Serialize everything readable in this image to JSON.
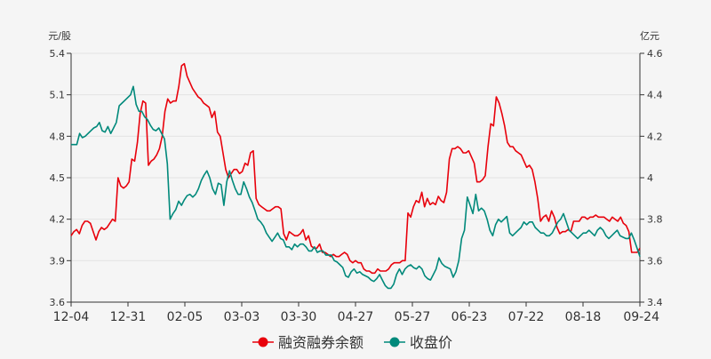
{
  "chart_data": {
    "type": "line",
    "left_unit": "元/股",
    "right_unit": "亿元",
    "x_ticks": [
      "12-04",
      "12-31",
      "02-05",
      "03-03",
      "03-30",
      "04-27",
      "05-27",
      "06-23",
      "07-22",
      "08-18",
      "09-24"
    ],
    "left_axis": {
      "min": 3.6,
      "max": 5.4,
      "ticks": [
        "3.6",
        "3.9",
        "4.2",
        "4.5",
        "4.8",
        "5.1",
        "5.4"
      ]
    },
    "right_axis": {
      "min": 3.4,
      "max": 4.6,
      "ticks": [
        "3.4",
        "3.6",
        "3.8",
        "4",
        "4.2",
        "4.4",
        "4.6"
      ]
    },
    "legend_position": "bottom-center",
    "colors": {
      "margin_balance": "#e8000b",
      "close_price": "#00897b",
      "axis": "#333333"
    },
    "series": [
      {
        "name": "融资融券余额",
        "axis": "right",
        "color": "#e8000b",
        "values": [
          3.72,
          3.74,
          3.75,
          3.73,
          3.77,
          3.79,
          3.79,
          3.78,
          3.74,
          3.7,
          3.74,
          3.76,
          3.75,
          3.76,
          3.78,
          3.8,
          3.79,
          4.0,
          3.96,
          3.95,
          3.96,
          3.98,
          4.09,
          4.08,
          4.17,
          4.31,
          4.37,
          4.36,
          4.06,
          4.08,
          4.09,
          4.11,
          4.14,
          4.2,
          4.32,
          4.38,
          4.36,
          4.37,
          4.37,
          4.44,
          4.54,
          4.55,
          4.49,
          4.46,
          4.43,
          4.41,
          4.39,
          4.38,
          4.36,
          4.35,
          4.34,
          4.29,
          4.32,
          4.22,
          4.2,
          4.12,
          4.04,
          4.0,
          4.02,
          4.04,
          4.04,
          4.02,
          4.03,
          4.07,
          4.06,
          4.12,
          4.13,
          3.9,
          3.87,
          3.86,
          3.85,
          3.84,
          3.84,
          3.85,
          3.86,
          3.86,
          3.85,
          3.73,
          3.7,
          3.74,
          3.73,
          3.72,
          3.72,
          3.73,
          3.75,
          3.7,
          3.72,
          3.67,
          3.66,
          3.66,
          3.68,
          3.64,
          3.64,
          3.63,
          3.62,
          3.63,
          3.62,
          3.62,
          3.63,
          3.64,
          3.63,
          3.6,
          3.59,
          3.6,
          3.59,
          3.59,
          3.56,
          3.55,
          3.55,
          3.54,
          3.54,
          3.56,
          3.55,
          3.55,
          3.55,
          3.56,
          3.58,
          3.59,
          3.59,
          3.59,
          3.6,
          3.6,
          3.83,
          3.81,
          3.86,
          3.89,
          3.88,
          3.93,
          3.86,
          3.9,
          3.87,
          3.88,
          3.87,
          3.91,
          3.89,
          3.88,
          3.93,
          4.09,
          4.14,
          4.14,
          4.15,
          4.14,
          4.12,
          4.12,
          4.13,
          4.1,
          4.07,
          3.98,
          3.98,
          3.99,
          4.01,
          4.15,
          4.26,
          4.25,
          4.39,
          4.36,
          4.31,
          4.25,
          4.17,
          4.15,
          4.15,
          4.13,
          4.12,
          4.11,
          4.08,
          4.05,
          4.06,
          4.04,
          3.98,
          3.9,
          3.79,
          3.81,
          3.82,
          3.79,
          3.84,
          3.81,
          3.76,
          3.73,
          3.74,
          3.74,
          3.75,
          3.74,
          3.79,
          3.79,
          3.79,
          3.81,
          3.81,
          3.8,
          3.81,
          3.81,
          3.82,
          3.81,
          3.81,
          3.81,
          3.8,
          3.79,
          3.81,
          3.8,
          3.79,
          3.81,
          3.78,
          3.77,
          3.74,
          3.64,
          3.64,
          3.64,
          3.66
        ]
      },
      {
        "name": "收盘价",
        "axis": "left",
        "color": "#00897b",
        "values": [
          4.74,
          4.74,
          4.74,
          4.82,
          4.79,
          4.8,
          4.82,
          4.84,
          4.86,
          4.87,
          4.9,
          4.84,
          4.83,
          4.87,
          4.82,
          4.86,
          4.9,
          5.02,
          5.04,
          5.06,
          5.08,
          5.1,
          5.16,
          5.03,
          4.98,
          4.98,
          4.94,
          4.92,
          4.88,
          4.85,
          4.84,
          4.86,
          4.82,
          4.78,
          4.6,
          4.2,
          4.24,
          4.27,
          4.33,
          4.3,
          4.34,
          4.37,
          4.38,
          4.36,
          4.38,
          4.42,
          4.48,
          4.52,
          4.55,
          4.5,
          4.42,
          4.38,
          4.46,
          4.45,
          4.3,
          4.47,
          4.55,
          4.48,
          4.42,
          4.38,
          4.38,
          4.47,
          4.42,
          4.36,
          4.32,
          4.26,
          4.2,
          4.18,
          4.15,
          4.1,
          4.07,
          4.04,
          4.07,
          4.1,
          4.06,
          4.05,
          4.0,
          4.0,
          3.98,
          4.02,
          4.0,
          4.02,
          4.02,
          4.0,
          3.97,
          3.97,
          4.0,
          3.96,
          3.97,
          3.97,
          3.94,
          3.94,
          3.94,
          3.9,
          3.89,
          3.87,
          3.85,
          3.79,
          3.78,
          3.82,
          3.84,
          3.81,
          3.82,
          3.8,
          3.79,
          3.78,
          3.76,
          3.75,
          3.77,
          3.8,
          3.76,
          3.72,
          3.7,
          3.7,
          3.73,
          3.8,
          3.84,
          3.8,
          3.84,
          3.86,
          3.87,
          3.85,
          3.84,
          3.86,
          3.84,
          3.79,
          3.77,
          3.76,
          3.8,
          3.84,
          3.92,
          3.88,
          3.86,
          3.85,
          3.84,
          3.78,
          3.82,
          3.9,
          4.06,
          4.12,
          4.36,
          4.3,
          4.24,
          4.38,
          4.26,
          4.28,
          4.26,
          4.2,
          4.12,
          4.08,
          4.16,
          4.2,
          4.18,
          4.2,
          4.22,
          4.1,
          4.08,
          4.1,
          4.12,
          4.14,
          4.18,
          4.16,
          4.18,
          4.18,
          4.14,
          4.12,
          4.1,
          4.1,
          4.08,
          4.08,
          4.1,
          4.14,
          4.18,
          4.2,
          4.24,
          4.18,
          4.12,
          4.1,
          4.08,
          4.06,
          4.08,
          4.1,
          4.1,
          4.12,
          4.1,
          4.08,
          4.12,
          4.14,
          4.12,
          4.08,
          4.06,
          4.08,
          4.1,
          4.12,
          4.08,
          4.07,
          4.06,
          4.06,
          4.1,
          4.05,
          3.99,
          3.93
        ]
      }
    ]
  }
}
